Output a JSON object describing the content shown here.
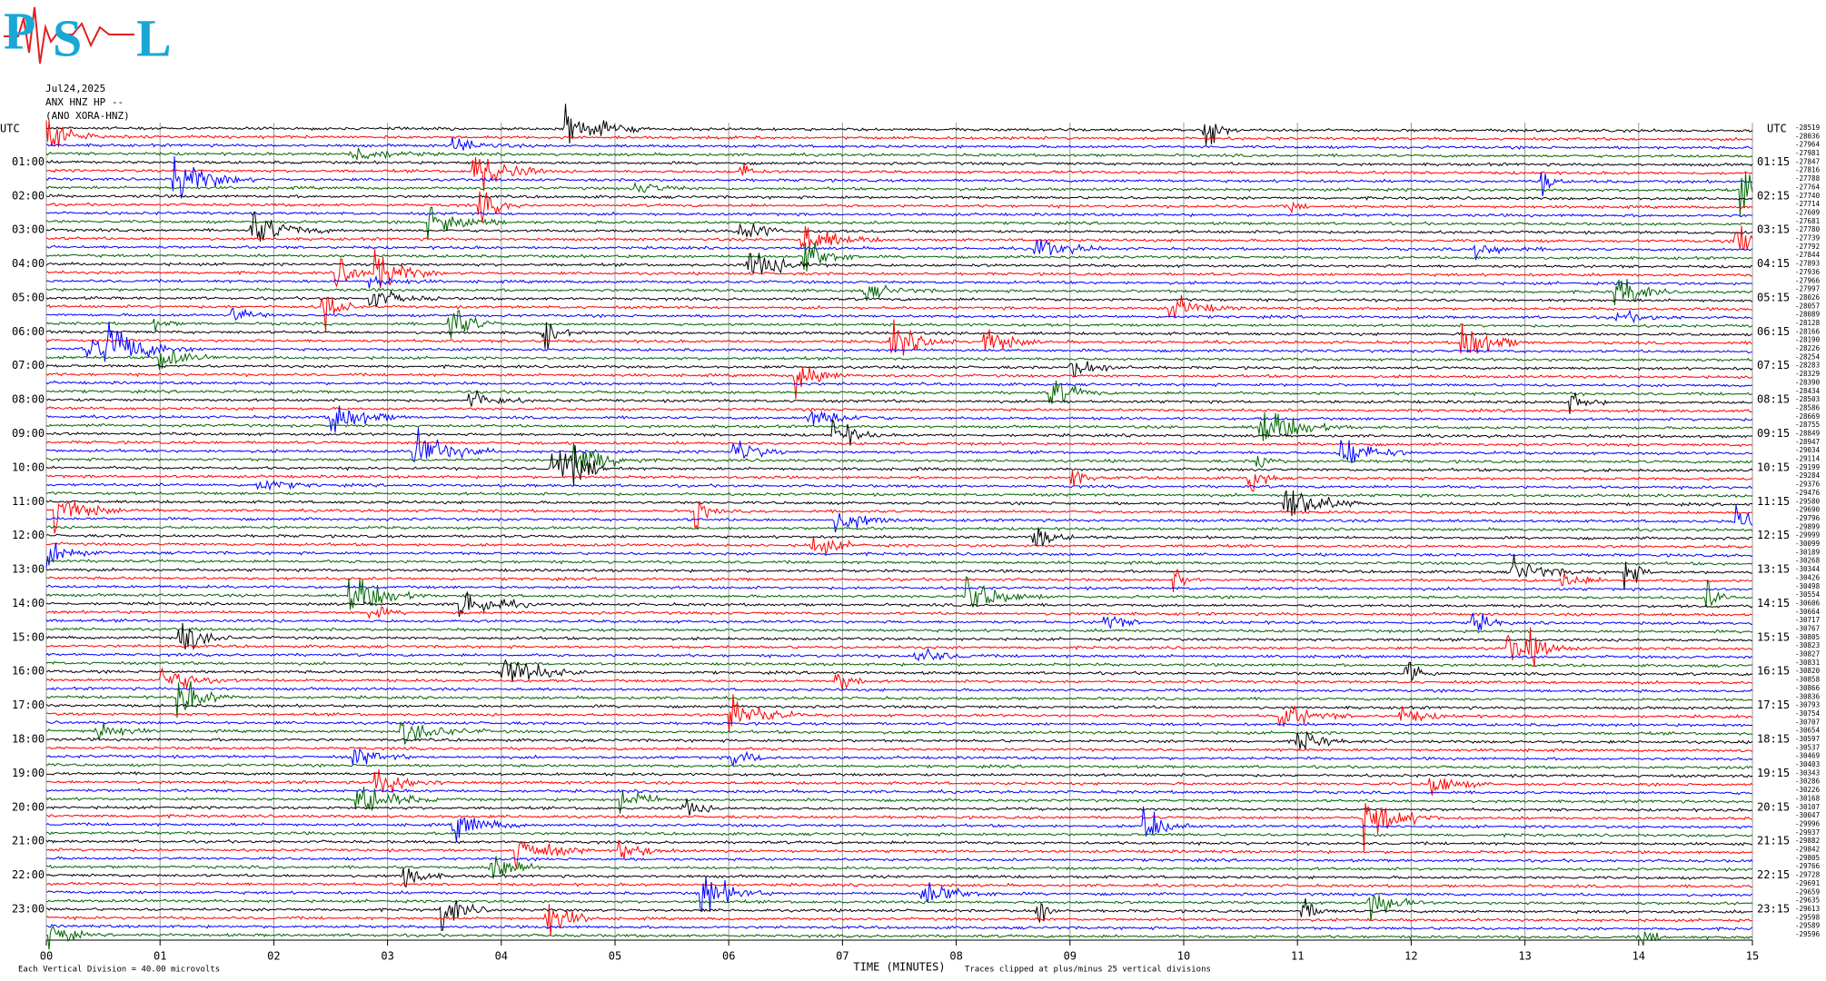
{
  "header": {
    "logo_letters": [
      "P",
      "S",
      "L"
    ]
  },
  "chart_data": {
    "type": "helicorder",
    "date": "Jul24,2025",
    "station": "ANX HNZ HP --",
    "network": "(ANO XORA-HNZ)",
    "left_axis_label": "UTC",
    "right_axis_label": "UTC",
    "left_hour_labels": [
      "01:00",
      "02:00",
      "03:00",
      "04:00",
      "05:00",
      "06:00",
      "07:00",
      "08:00",
      "09:00",
      "10:00",
      "11:00",
      "12:00",
      "13:00",
      "14:00",
      "15:00",
      "16:00",
      "17:00",
      "18:00",
      "19:00",
      "20:00",
      "21:00",
      "22:00",
      "23:00"
    ],
    "right_hour_labels": [
      "01:15",
      "02:15",
      "03:15",
      "04:15",
      "05:15",
      "06:15",
      "07:15",
      "08:15",
      "09:15",
      "10:15",
      "11:15",
      "12:15",
      "13:15",
      "14:15",
      "15:15",
      "16:15",
      "17:15",
      "18:15",
      "19:15",
      "20:15",
      "21:15",
      "22:15",
      "23:15"
    ],
    "trace_offsets": [
      -28519,
      -28036,
      -27964,
      -27981,
      -27847,
      -27816,
      -27788,
      -27764,
      -27740,
      -27714,
      -27609,
      -27681,
      -27780,
      -27739,
      -27792,
      -27844,
      -27893,
      -27936,
      -27966,
      -27997,
      -28026,
      -28057,
      -28089,
      -28128,
      -28166,
      -28190,
      -28226,
      -28254,
      -28283,
      -28329,
      -28390,
      -28434,
      -28503,
      -28586,
      -28669,
      -28755,
      -28849,
      -28947,
      -29034,
      -29114,
      -29199,
      -29284,
      -29376,
      -29476,
      -29580,
      -29690,
      -29796,
      -29899,
      -29999,
      -30099,
      -30189,
      -30268,
      -30344,
      -30426,
      -30498,
      -30554,
      -30606,
      -30664,
      -30717,
      -30767,
      -30805,
      -30823,
      -30827,
      -30831,
      -30820,
      -30858,
      -30866,
      -30836,
      -30793,
      -30754,
      -30707,
      -30654,
      -30597,
      -30537,
      -30469,
      -30403,
      -30343,
      -30286,
      -30226,
      -30168,
      -30107,
      -30047,
      -29996,
      -29937,
      -29882,
      -29842,
      -29805,
      -29766,
      -29728,
      -29691,
      -29659,
      -29635,
      -29613,
      -29598,
      -29589,
      -29596
    ],
    "trace_colors": [
      "#000000",
      "#ff0000",
      "#0000ff",
      "#006400"
    ],
    "xlim": [
      0,
      15
    ],
    "xticks": [
      {
        "value": 0,
        "label": "00"
      },
      {
        "value": 1,
        "label": "01"
      },
      {
        "value": 2,
        "label": "02"
      },
      {
        "value": 3,
        "label": "03"
      },
      {
        "value": 4,
        "label": "04"
      },
      {
        "value": 5,
        "label": "05"
      },
      {
        "value": 6,
        "label": "06"
      },
      {
        "value": 7,
        "label": "07"
      },
      {
        "value": 8,
        "label": "08"
      },
      {
        "value": 9,
        "label": "09"
      },
      {
        "value": 10,
        "label": "10"
      },
      {
        "value": 11,
        "label": "11"
      },
      {
        "value": 12,
        "label": "12"
      },
      {
        "value": 13,
        "label": "13"
      },
      {
        "value": 14,
        "label": "14"
      },
      {
        "value": 15,
        "label": "15"
      }
    ],
    "x_label": "TIME (MINUTES)",
    "scale_note": "Each Vertical Division =   40.00 microvolts",
    "clip_note": "Traces clipped at plus/minus 25 vertical divisions",
    "grid": true
  }
}
